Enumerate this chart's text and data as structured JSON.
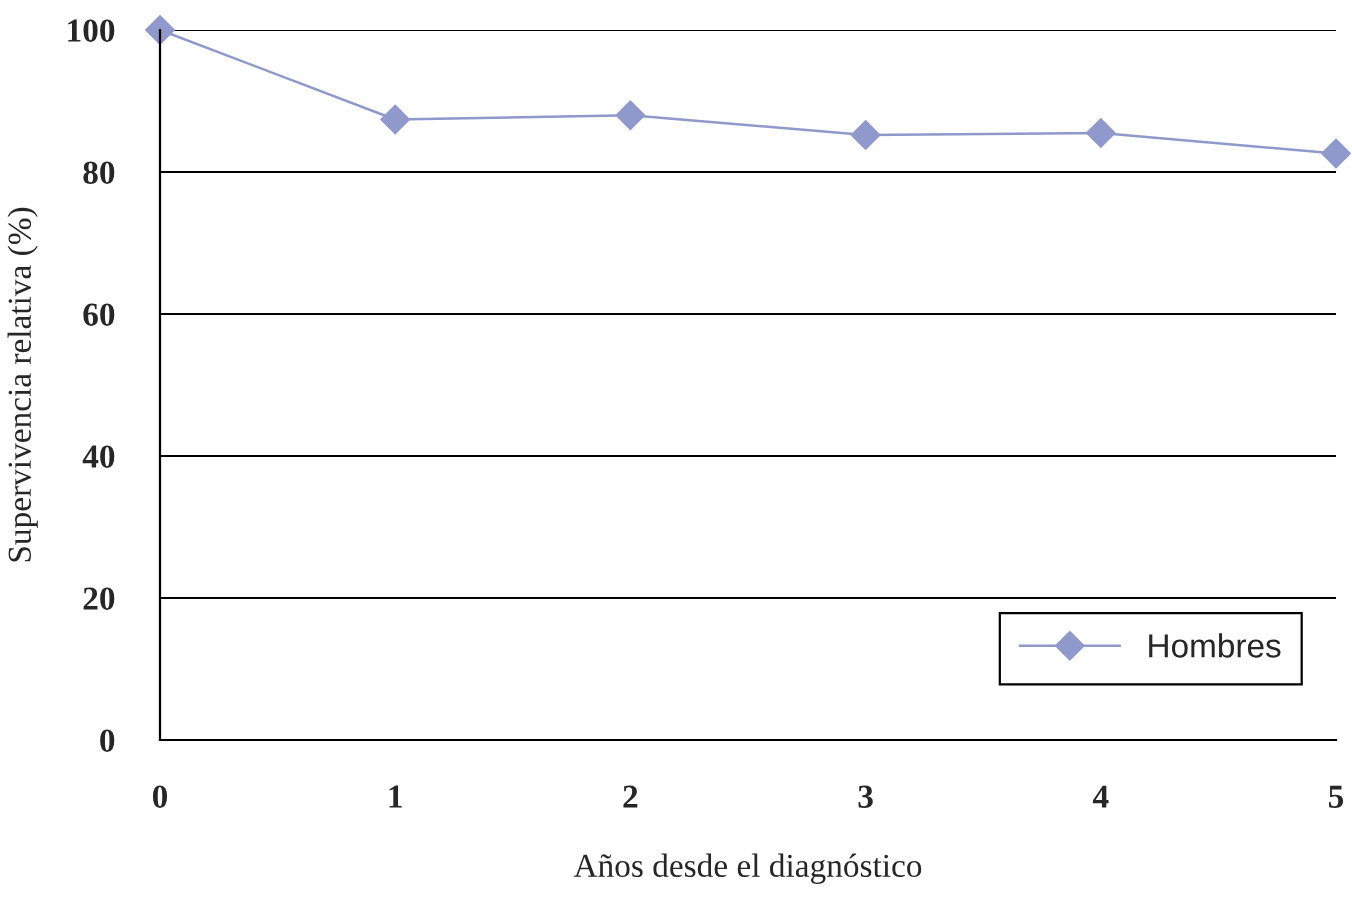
{
  "chart_data": {
    "type": "line",
    "xlabel": "Años desde el diagnóstico",
    "ylabel": "Supervivencia relativa (%)",
    "x": [
      0,
      1,
      2,
      3,
      4,
      5
    ],
    "series": [
      {
        "name": "Hombres",
        "color": "#8f99cc",
        "values": [
          100,
          87.4,
          88,
          85.2,
          85.5,
          82.6
        ]
      }
    ],
    "xlim": [
      0,
      5
    ],
    "xticks": [
      0,
      1,
      2,
      3,
      4,
      5
    ],
    "ylim": [
      0,
      100
    ],
    "yticks": [
      0,
      20,
      40,
      60,
      80,
      100
    ],
    "grid": "y",
    "legend": "bottom right",
    "marker": "diamond",
    "line_style": "solid"
  }
}
